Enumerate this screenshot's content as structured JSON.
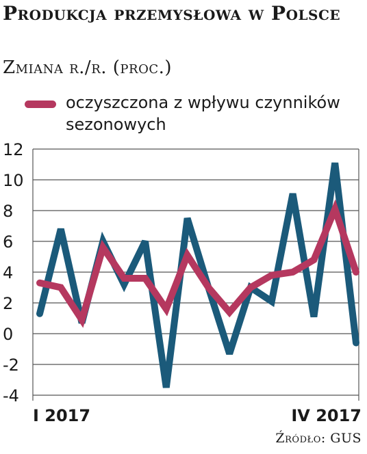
{
  "header": {
    "title": "Produkcja przemysłowa w Polsce",
    "subtitle": "Zmiana r./r. (proc.)"
  },
  "source": "Źródło: GUS",
  "colors": {
    "raw": "#1b5a7a",
    "seasonal": "#b5385f",
    "grid": "#555555"
  },
  "chart_data": {
    "type": "line",
    "title": "Produkcja przemysłowa w Polsce",
    "subtitle": "Zmiana r./r. (proc.)",
    "xlabel": "",
    "ylabel": "",
    "ylim": [
      -4,
      12
    ],
    "yticks": [
      12,
      10,
      8,
      6,
      4,
      2,
      0,
      -2,
      -4
    ],
    "x_tick_labels": [
      "I 2017",
      "IV 2017"
    ],
    "grid": true,
    "legend": "top-left",
    "series": [
      {
        "name": "",
        "color": "#1b5a7a",
        "values": [
          1.3,
          6.8,
          0.7,
          6.0,
          3.2,
          6.0,
          -3.5,
          7.5,
          3.0,
          -1.3,
          3.0,
          2.1,
          9.1,
          1.1,
          11.1,
          -0.6
        ]
      },
      {
        "name": "oczyszczona z wpływu czynników sezonowych",
        "color": "#b5385f",
        "values": [
          3.3,
          3.0,
          0.9,
          5.6,
          3.6,
          3.6,
          1.6,
          5.1,
          3.0,
          1.4,
          3.0,
          3.8,
          4.0,
          4.8,
          8.1,
          4.0
        ]
      }
    ]
  }
}
